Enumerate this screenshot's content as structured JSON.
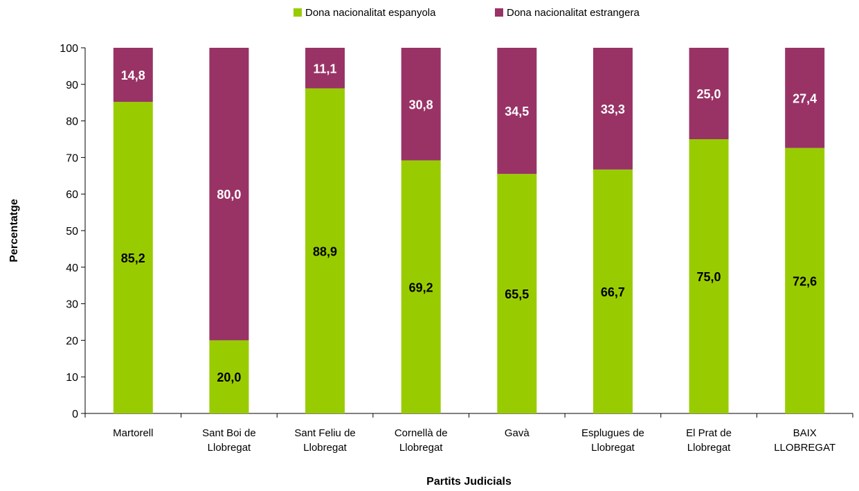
{
  "chart_data": {
    "type": "bar",
    "stacked": true,
    "categories": [
      [
        "Martorell"
      ],
      [
        "Sant Boi de",
        "Llobregat"
      ],
      [
        "Sant Feliu de",
        "Llobregat"
      ],
      [
        "Cornellà de",
        "Llobregat"
      ],
      [
        "Gavà"
      ],
      [
        "Esplugues de",
        "Llobregat"
      ],
      [
        "El Prat de",
        "Llobregat"
      ],
      [
        "BAIX",
        "LLOBREGAT"
      ]
    ],
    "series": [
      {
        "name": "Dona nacionalitat espanyola",
        "color": "#99cc00",
        "label_color": "#000000",
        "values": [
          85.2,
          20.0,
          88.9,
          69.2,
          65.5,
          66.7,
          75.0,
          72.6
        ],
        "labels": [
          "85,2",
          "20,0",
          "88,9",
          "69,2",
          "65,5",
          "66,7",
          "75,0",
          "72,6"
        ]
      },
      {
        "name": "Dona nacionalitat estrangera",
        "color": "#993366",
        "label_color": "#ffffff",
        "values": [
          14.8,
          80.0,
          11.1,
          30.8,
          34.5,
          33.3,
          25.0,
          27.4
        ],
        "labels": [
          "14,8",
          "80,0",
          "11,1",
          "30,8",
          "34,5",
          "33,3",
          "25,0",
          "27,4"
        ]
      }
    ],
    "xlabel": "Partits Judicials",
    "ylabel": "Percentatge",
    "ylim": [
      0,
      100
    ],
    "yticks": [
      0,
      10,
      20,
      30,
      40,
      50,
      60,
      70,
      80,
      90,
      100
    ],
    "grid": false,
    "legend_position": "top"
  }
}
